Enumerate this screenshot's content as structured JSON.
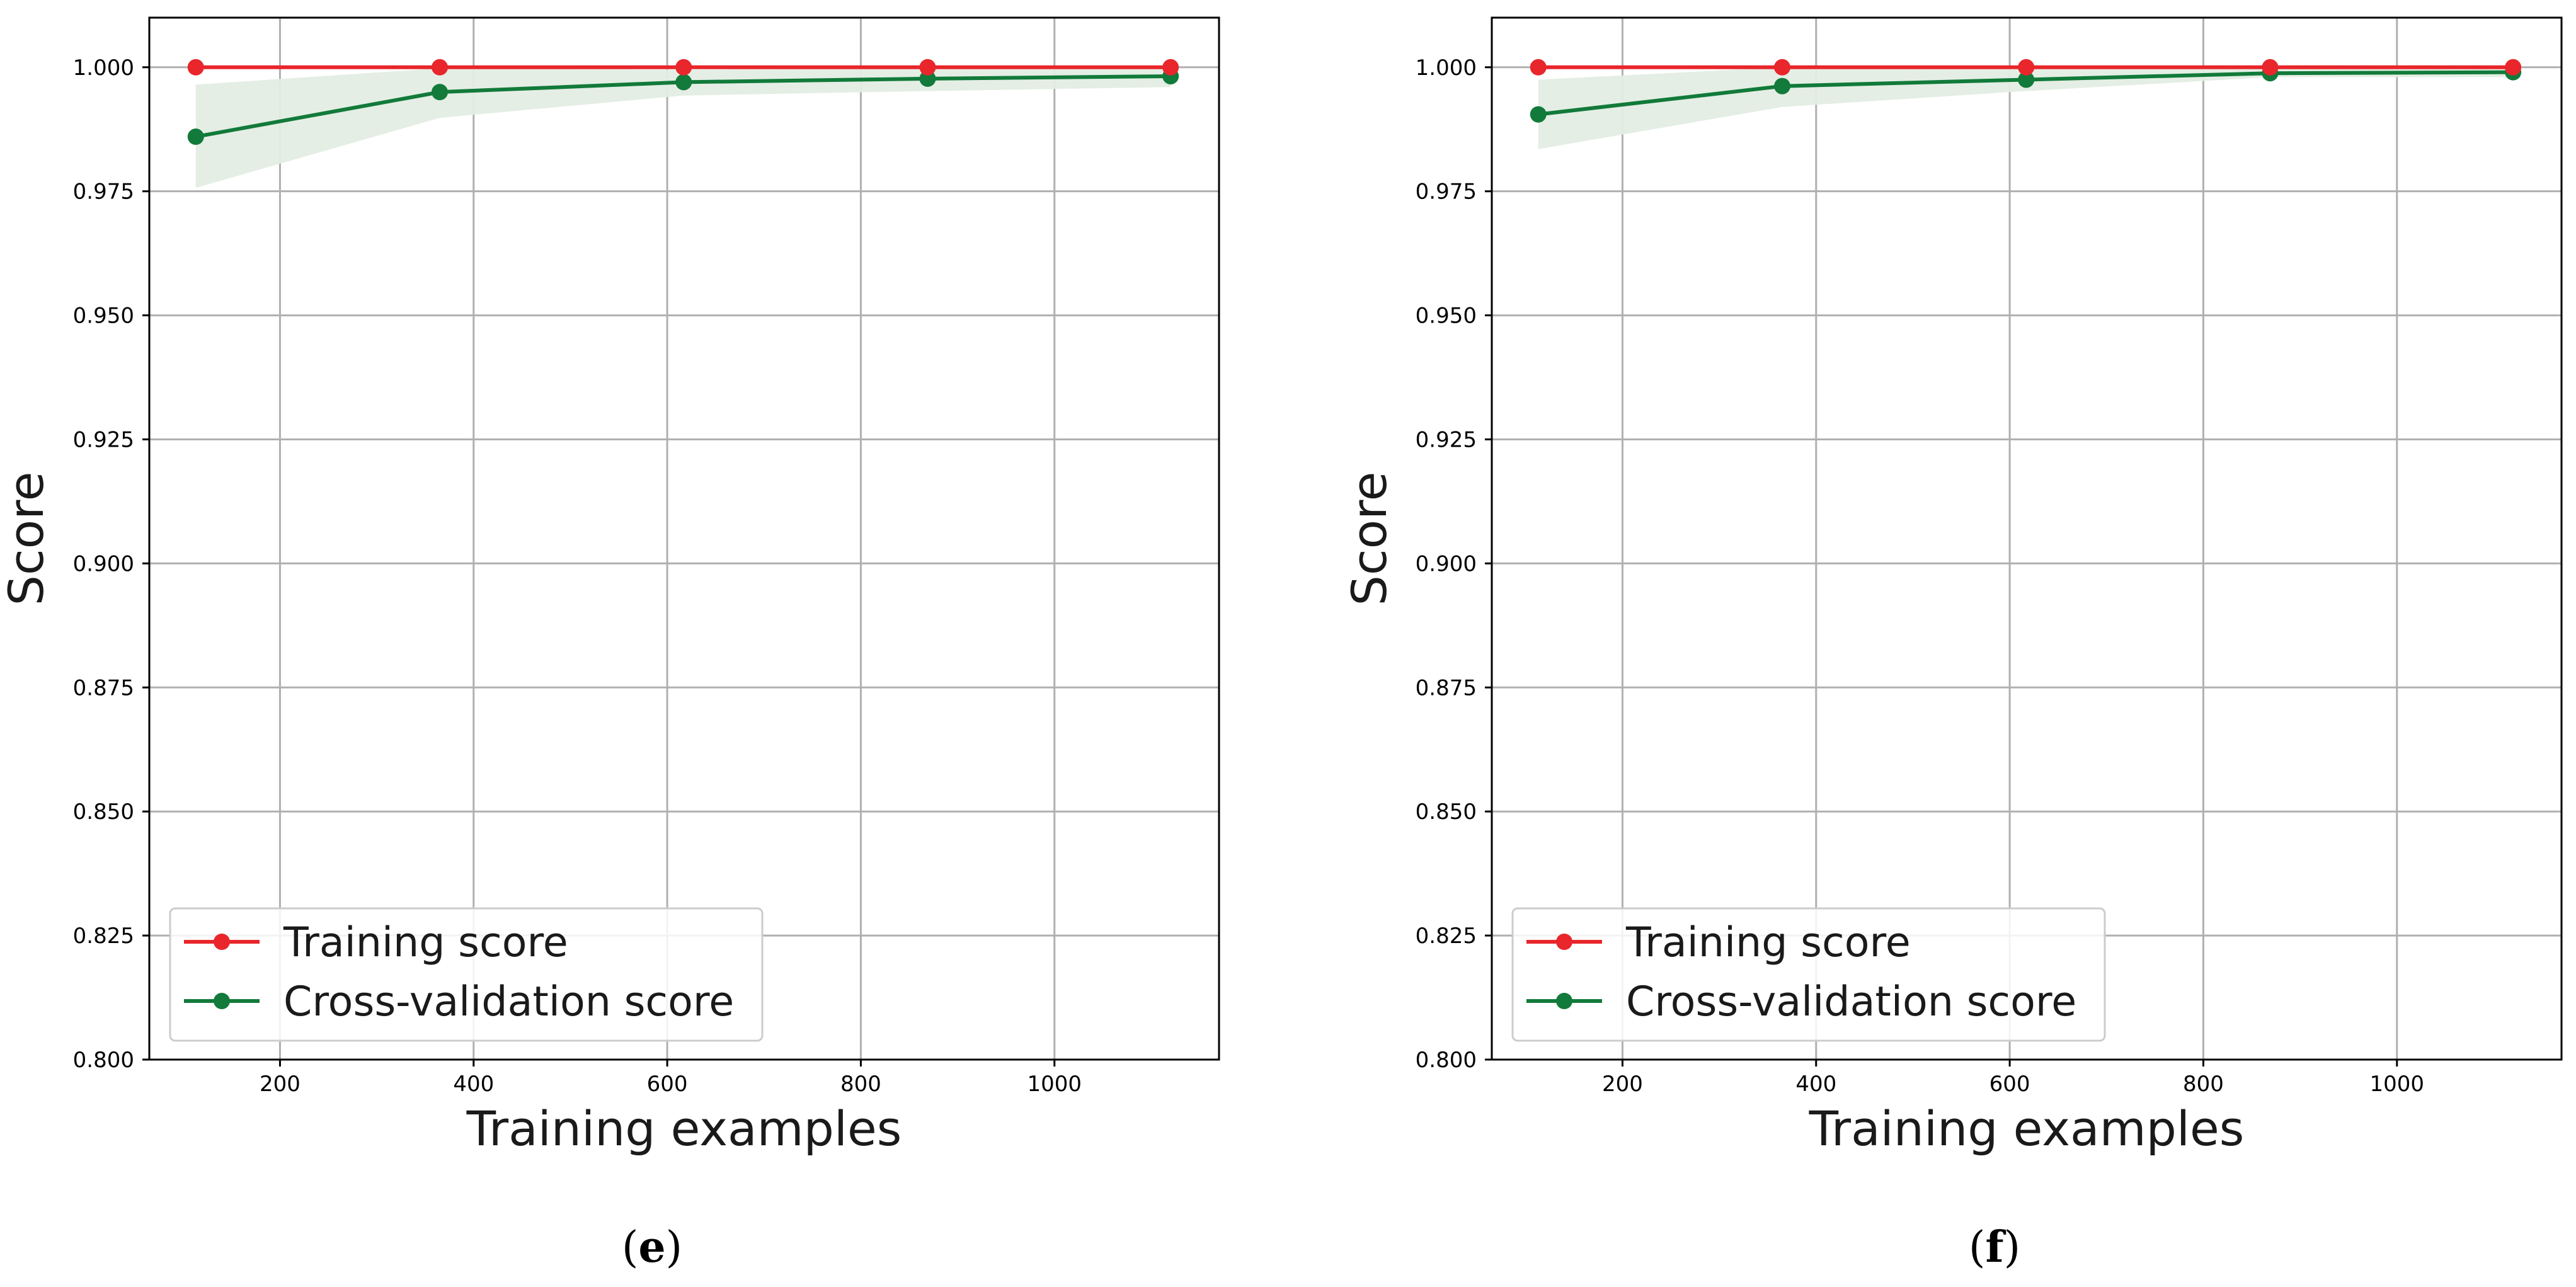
{
  "chart_data": [
    {
      "type": "line",
      "panel": "e",
      "caption_open": "(",
      "caption_letter": "e",
      "caption_close": ")",
      "xlabel": "Training examples",
      "ylabel": "Score",
      "xlim": [
        65,
        1170
      ],
      "ylim": [
        0.8,
        1.01
      ],
      "xticks": [
        200,
        400,
        600,
        800,
        1000
      ],
      "yticks": [
        0.8,
        0.825,
        0.85,
        0.875,
        0.9,
        0.925,
        0.95,
        0.975,
        1.0
      ],
      "ytick_labels": [
        "0.800",
        "0.825",
        "0.850",
        "0.875",
        "0.900",
        "0.925",
        "0.950",
        "0.975",
        "1.000"
      ],
      "grid": true,
      "legend_position": "lower-left",
      "x": [
        113,
        365,
        617,
        869,
        1120
      ],
      "series": [
        {
          "name": "Training score",
          "color": "#e8262b",
          "values": [
            1.0,
            1.0,
            1.0,
            1.0,
            1.0
          ],
          "std": [
            0,
            0,
            0,
            0,
            0
          ]
        },
        {
          "name": "Cross-validation score",
          "color": "#127a3a",
          "values": [
            0.986,
            0.995,
            0.997,
            0.9977,
            0.9982
          ],
          "band_lower": [
            0.9757,
            0.9898,
            0.9943,
            0.9952,
            0.996
          ],
          "band_upper": [
            0.9965,
            0.9998,
            0.9995,
            0.9999,
            1.0
          ]
        }
      ]
    },
    {
      "type": "line",
      "panel": "f",
      "caption_open": "(",
      "caption_letter": "f",
      "caption_close": ")",
      "xlabel": "Training examples",
      "ylabel": "Score",
      "xlim": [
        65,
        1170
      ],
      "ylim": [
        0.8,
        1.01
      ],
      "xticks": [
        200,
        400,
        600,
        800,
        1000
      ],
      "yticks": [
        0.8,
        0.825,
        0.85,
        0.875,
        0.9,
        0.925,
        0.95,
        0.975,
        1.0
      ],
      "ytick_labels": [
        "0.800",
        "0.825",
        "0.850",
        "0.875",
        "0.900",
        "0.925",
        "0.950",
        "0.975",
        "1.000"
      ],
      "grid": true,
      "legend_position": "lower-left",
      "x": [
        113,
        365,
        617,
        869,
        1120
      ],
      "series": [
        {
          "name": "Training score",
          "color": "#e8262b",
          "values": [
            1.0,
            1.0,
            1.0,
            1.0,
            1.0
          ],
          "std": [
            0,
            0,
            0,
            0,
            0
          ]
        },
        {
          "name": "Cross-validation score",
          "color": "#127a3a",
          "values": [
            0.9905,
            0.9962,
            0.9975,
            0.9988,
            0.999
          ],
          "band_lower": [
            0.9835,
            0.992,
            0.9952,
            0.998,
            0.998
          ],
          "band_upper": [
            0.9975,
            1.0,
            0.9998,
            1.0,
            1.0
          ]
        }
      ]
    }
  ],
  "colors": {
    "band": "#e3ede3",
    "grid": "#b0b0b0",
    "frame": "#000000"
  }
}
